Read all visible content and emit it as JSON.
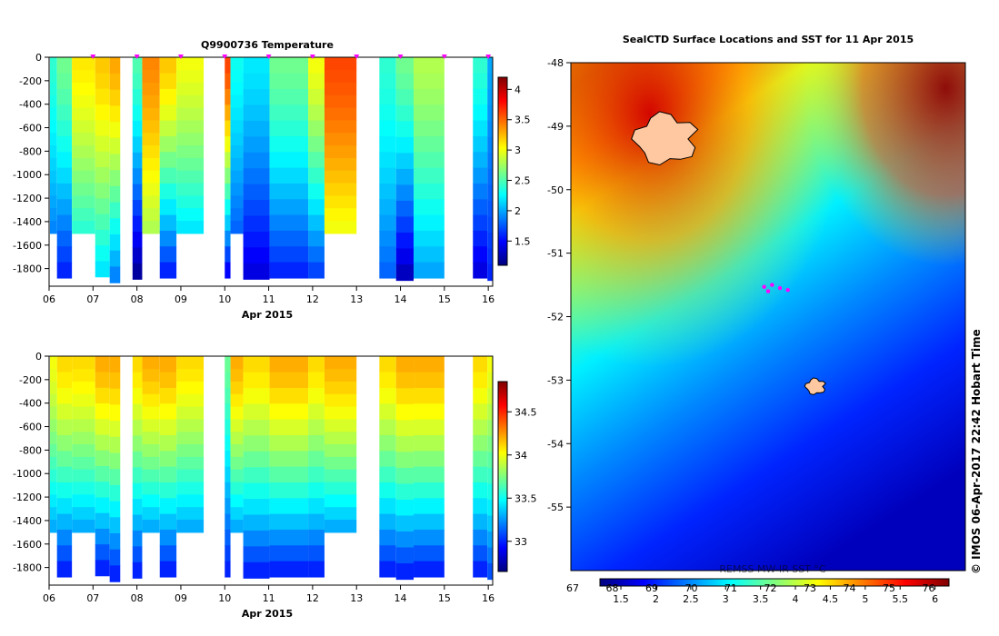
{
  "chart_data": [
    {
      "type": "heatmap",
      "title": "Q9900736  Temperature",
      "xlabel": "Apr 2015",
      "x_ticks": [
        "06",
        "07",
        "08",
        "09",
        "10",
        "11",
        "12",
        "13",
        "14",
        "15",
        "16"
      ],
      "y_ticks": [
        0,
        -200,
        -400,
        -600,
        -800,
        -1000,
        -1200,
        -1400,
        -1600,
        -1800
      ],
      "ylim": [
        -1950,
        0
      ],
      "xlim": [
        6.0,
        16.1
      ],
      "colorbar_ticks": [
        1.5,
        2,
        2.5,
        3,
        3.5,
        4
      ],
      "colorbar_range": [
        1.1,
        4.2
      ],
      "profile_markers": [
        7.0,
        8.0,
        9.0,
        10.0,
        11.0,
        12.0,
        13.0,
        14.0,
        15.0,
        16.0
      ],
      "profiles": [
        {
          "t0": 6.02,
          "t1": 6.18,
          "bottom": -1500,
          "top_value": 2.4,
          "deep_value": 1.9
        },
        {
          "t0": 6.18,
          "t1": 6.52,
          "bottom": -1880,
          "top_value": 2.6,
          "deep_value": 1.6
        },
        {
          "t0": 6.52,
          "t1": 7.05,
          "bottom": -1500,
          "top_value": 3.1,
          "deep_value": 2.4
        },
        {
          "t0": 7.05,
          "t1": 7.38,
          "bottom": -1870,
          "top_value": 3.2,
          "deep_value": 2.2
        },
        {
          "t0": 7.38,
          "t1": 7.62,
          "bottom": -1920,
          "top_value": 3.3,
          "deep_value": 1.9
        },
        {
          "t0": 7.9,
          "t1": 8.12,
          "bottom": -1890,
          "top_value": 2.5,
          "deep_value": 1.2
        },
        {
          "t0": 8.12,
          "t1": 8.52,
          "bottom": -1500,
          "top_value": 3.4,
          "deep_value": 2.8
        },
        {
          "t0": 8.52,
          "t1": 8.9,
          "bottom": -1880,
          "top_value": 3.2,
          "deep_value": 1.6
        },
        {
          "t0": 8.9,
          "t1": 9.52,
          "bottom": -1500,
          "top_value": 3.0,
          "deep_value": 2.2
        },
        {
          "t0": 10.0,
          "t1": 10.13,
          "bottom": -1880,
          "top_value": 3.6,
          "deep_value": 1.5
        },
        {
          "t0": 10.13,
          "t1": 10.42,
          "bottom": -1500,
          "top_value": 2.3,
          "deep_value": 1.8
        },
        {
          "t0": 10.42,
          "t1": 11.02,
          "bottom": -1890,
          "top_value": 2.2,
          "deep_value": 1.4
        },
        {
          "t0": 11.02,
          "t1": 11.9,
          "bottom": -1880,
          "top_value": 2.6,
          "deep_value": 1.6
        },
        {
          "t0": 11.9,
          "t1": 12.27,
          "bottom": -1880,
          "top_value": 3.0,
          "deep_value": 1.7
        },
        {
          "t0": 12.27,
          "t1": 13.0,
          "bottom": -1500,
          "top_value": 3.6,
          "deep_value": 3.0
        },
        {
          "t0": 13.52,
          "t1": 13.9,
          "bottom": -1880,
          "top_value": 2.4,
          "deep_value": 1.8
        },
        {
          "t0": 13.9,
          "t1": 14.3,
          "bottom": -1900,
          "top_value": 2.6,
          "deep_value": 1.3
        },
        {
          "t0": 14.3,
          "t1": 15.0,
          "bottom": -1880,
          "top_value": 2.8,
          "deep_value": 2.0
        },
        {
          "t0": 15.65,
          "t1": 15.98,
          "bottom": -1880,
          "top_value": 2.4,
          "deep_value": 1.4
        },
        {
          "t0": 15.98,
          "t1": 16.1,
          "bottom": -1900,
          "top_value": 2.0,
          "deep_value": 1.6
        }
      ]
    },
    {
      "type": "heatmap",
      "title": "",
      "xlabel": "Apr 2015",
      "x_ticks": [
        "06",
        "07",
        "08",
        "09",
        "10",
        "11",
        "12",
        "13",
        "14",
        "15",
        "16"
      ],
      "y_ticks": [
        0,
        -200,
        -400,
        -600,
        -800,
        -1000,
        -1200,
        -1400,
        -1600,
        -1800
      ],
      "ylim": [
        -1950,
        0
      ],
      "xlim": [
        6.0,
        16.1
      ],
      "colorbar_ticks": [
        33,
        33.5,
        34,
        34.5
      ],
      "colorbar_range": [
        32.65,
        34.85
      ],
      "profiles": [
        {
          "t0": 6.02,
          "t1": 6.18,
          "bottom": -1500,
          "top_value": 34.0,
          "deep_value": 33.3
        },
        {
          "t0": 6.18,
          "t1": 6.52,
          "bottom": -1880,
          "top_value": 34.1,
          "deep_value": 33.0
        },
        {
          "t0": 6.52,
          "t1": 7.05,
          "bottom": -1500,
          "top_value": 34.1,
          "deep_value": 33.3
        },
        {
          "t0": 7.05,
          "t1": 7.38,
          "bottom": -1870,
          "top_value": 34.2,
          "deep_value": 33.0
        },
        {
          "t0": 7.38,
          "t1": 7.62,
          "bottom": -1920,
          "top_value": 34.2,
          "deep_value": 33.0
        },
        {
          "t0": 7.9,
          "t1": 8.12,
          "bottom": -1890,
          "top_value": 34.1,
          "deep_value": 33.0
        },
        {
          "t0": 8.12,
          "t1": 8.52,
          "bottom": -1500,
          "top_value": 34.2,
          "deep_value": 33.3
        },
        {
          "t0": 8.52,
          "t1": 8.9,
          "bottom": -1880,
          "top_value": 34.2,
          "deep_value": 33.0
        },
        {
          "t0": 8.9,
          "t1": 9.52,
          "bottom": -1500,
          "top_value": 34.1,
          "deep_value": 33.3
        },
        {
          "t0": 10.0,
          "t1": 10.13,
          "bottom": -1880,
          "top_value": 33.7,
          "deep_value": 33.0
        },
        {
          "t0": 10.13,
          "t1": 10.42,
          "bottom": -1500,
          "top_value": 34.2,
          "deep_value": 33.3
        },
        {
          "t0": 10.42,
          "t1": 11.02,
          "bottom": -1890,
          "top_value": 34.1,
          "deep_value": 33.0
        },
        {
          "t0": 11.02,
          "t1": 11.9,
          "bottom": -1880,
          "top_value": 34.2,
          "deep_value": 33.0
        },
        {
          "t0": 11.9,
          "t1": 12.27,
          "bottom": -1880,
          "top_value": 34.1,
          "deep_value": 33.0
        },
        {
          "t0": 12.27,
          "t1": 13.0,
          "bottom": -1500,
          "top_value": 34.2,
          "deep_value": 33.3
        },
        {
          "t0": 13.52,
          "t1": 13.9,
          "bottom": -1880,
          "top_value": 34.1,
          "deep_value": 33.0
        },
        {
          "t0": 13.9,
          "t1": 14.3,
          "bottom": -1900,
          "top_value": 34.2,
          "deep_value": 33.0
        },
        {
          "t0": 14.3,
          "t1": 15.0,
          "bottom": -1880,
          "top_value": 34.2,
          "deep_value": 33.0
        },
        {
          "t0": 15.65,
          "t1": 15.98,
          "bottom": -1880,
          "top_value": 34.1,
          "deep_value": 33.0
        },
        {
          "t0": 15.98,
          "t1": 16.1,
          "bottom": -1900,
          "top_value": 34.0,
          "deep_value": 33.1
        }
      ]
    },
    {
      "type": "heatmap",
      "title": "SealCTD Surface Locations and SST for 11 Apr 2015",
      "y_ticks": [
        "-48",
        "-49",
        "-50",
        "-51",
        "-52",
        "-53",
        "-54",
        "-55"
      ],
      "ylim": [
        -56,
        -48
      ],
      "colorbar_ticks_bottom": [
        "1.5",
        "2",
        "2.5",
        "3",
        "3.5",
        "4",
        "4.5",
        "5",
        "5.5",
        "6"
      ],
      "colorbar_ticks_top": [
        "67",
        "68",
        "69",
        "70",
        "71",
        "72",
        "73",
        "74",
        "75",
        "76"
      ],
      "colorbar_range": [
        1.2,
        6.2
      ],
      "colorbar_caption": "REMSS MW-IR SST °C",
      "credit": "© IMOS 06-Apr-2017 22:42 Hobart Time",
      "sst_gradient": [
        {
          "stop": 0.0,
          "value": 6.0
        },
        {
          "stop": 0.12,
          "value": 5.0
        },
        {
          "stop": 0.2,
          "value": 4.2
        },
        {
          "stop": 0.3,
          "value": 3.7
        },
        {
          "stop": 0.45,
          "value": 3.0
        },
        {
          "stop": 0.62,
          "value": 2.5
        },
        {
          "stop": 0.8,
          "value": 2.0
        },
        {
          "stop": 1.0,
          "value": 1.5
        }
      ],
      "islands": [
        {
          "lon_frac": 0.24,
          "lat": -49.2
        },
        {
          "lon_frac": 0.62,
          "lat": -53.1
        }
      ],
      "seal_positions": [
        {
          "lon_frac": 0.49,
          "lat": -51.53
        },
        {
          "lon_frac": 0.51,
          "lat": -51.5
        },
        {
          "lon_frac": 0.53,
          "lat": -51.55
        },
        {
          "lon_frac": 0.5,
          "lat": -51.6
        },
        {
          "lon_frac": 0.55,
          "lat": -51.58
        }
      ]
    }
  ],
  "colors": {
    "jet": [
      "#00007f",
      "#0000ff",
      "#007fff",
      "#00ffff",
      "#7fff7f",
      "#ffff00",
      "#ff7f00",
      "#ff0000",
      "#7f0000"
    ],
    "seal_marker": "#ff00ff",
    "island_fill": "#ffc8a0"
  }
}
